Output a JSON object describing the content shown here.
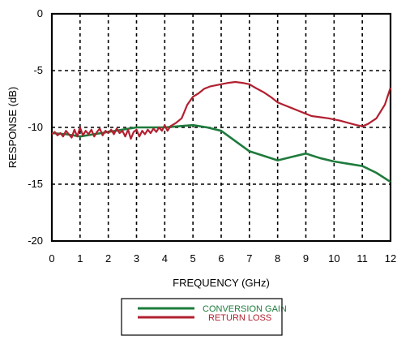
{
  "chart_data": {
    "type": "line",
    "xlabel": "FREQUENCY (GHz)",
    "ylabel": "RESPONSE (dB)",
    "xlim": [
      0,
      12
    ],
    "ylim": [
      -20,
      0
    ],
    "x_ticks": [
      "0",
      "1",
      "2",
      "3",
      "4",
      "5",
      "6",
      "7",
      "8",
      "9",
      "10",
      "11",
      "12"
    ],
    "y_ticks": [
      "0",
      "-5",
      "-10",
      "-15",
      "-20"
    ],
    "grid": true,
    "legend_position": "bottom-center",
    "series": [
      {
        "name": "CONVERSION GAIN",
        "color": "#1e7b3c",
        "x": [
          0,
          0.5,
          1,
          1.5,
          2,
          2.5,
          3,
          3.5,
          4,
          4.5,
          5,
          5.5,
          6,
          6.5,
          7,
          7.5,
          8,
          8.5,
          9,
          9.5,
          10,
          10.5,
          11,
          11.5,
          12
        ],
        "y": [
          -10.5,
          -10.6,
          -10.8,
          -10.6,
          -10.4,
          -10.2,
          -10.0,
          -10.0,
          -10.0,
          -9.9,
          -9.8,
          -10.0,
          -10.3,
          -11.2,
          -12.1,
          -12.5,
          -12.9,
          -12.6,
          -12.3,
          -12.7,
          -13.0,
          -13.2,
          -13.4,
          -14.0,
          -14.8
        ]
      },
      {
        "name": "RETURN LOSS",
        "color": "#b22030",
        "x": [
          0,
          0.1,
          0.2,
          0.3,
          0.4,
          0.5,
          0.6,
          0.7,
          0.8,
          0.9,
          1.0,
          1.1,
          1.2,
          1.3,
          1.4,
          1.5,
          1.6,
          1.7,
          1.8,
          1.9,
          2.0,
          2.1,
          2.2,
          2.3,
          2.4,
          2.5,
          2.6,
          2.7,
          2.8,
          2.9,
          3.0,
          3.1,
          3.2,
          3.3,
          3.4,
          3.5,
          3.6,
          3.7,
          3.8,
          3.9,
          4.0,
          4.1,
          4.2,
          4.4,
          4.6,
          4.8,
          5.0,
          5.2,
          5.4,
          5.6,
          5.8,
          6.0,
          6.2,
          6.5,
          6.8,
          7.0,
          7.2,
          7.5,
          7.8,
          8.0,
          8.2,
          8.5,
          8.8,
          9.0,
          9.2,
          9.5,
          9.8,
          10.0,
          10.2,
          10.5,
          10.8,
          11.0,
          11.2,
          11.5,
          11.8,
          12.0
        ],
        "y": [
          -10.6,
          -10.4,
          -10.7,
          -10.5,
          -10.8,
          -10.3,
          -10.6,
          -10.9,
          -10.2,
          -10.8,
          -10.0,
          -10.7,
          -10.3,
          -10.6,
          -10.2,
          -10.8,
          -10.4,
          -10.1,
          -10.7,
          -10.3,
          -10.5,
          -10.2,
          -10.6,
          -10.1,
          -10.5,
          -10.3,
          -10.8,
          -10.2,
          -11.0,
          -10.4,
          -10.2,
          -10.8,
          -10.3,
          -10.6,
          -10.2,
          -10.5,
          -10.1,
          -10.4,
          -10.0,
          -10.3,
          -9.8,
          -10.3,
          -9.9,
          -9.6,
          -9.2,
          -8.0,
          -7.3,
          -7.0,
          -6.6,
          -6.4,
          -6.3,
          -6.2,
          -6.1,
          -6.0,
          -6.1,
          -6.2,
          -6.5,
          -6.9,
          -7.4,
          -7.8,
          -8.0,
          -8.3,
          -8.6,
          -8.8,
          -9.0,
          -9.1,
          -9.2,
          -9.3,
          -9.4,
          -9.6,
          -9.8,
          -9.9,
          -9.7,
          -9.2,
          -8.0,
          -6.5
        ]
      }
    ]
  }
}
